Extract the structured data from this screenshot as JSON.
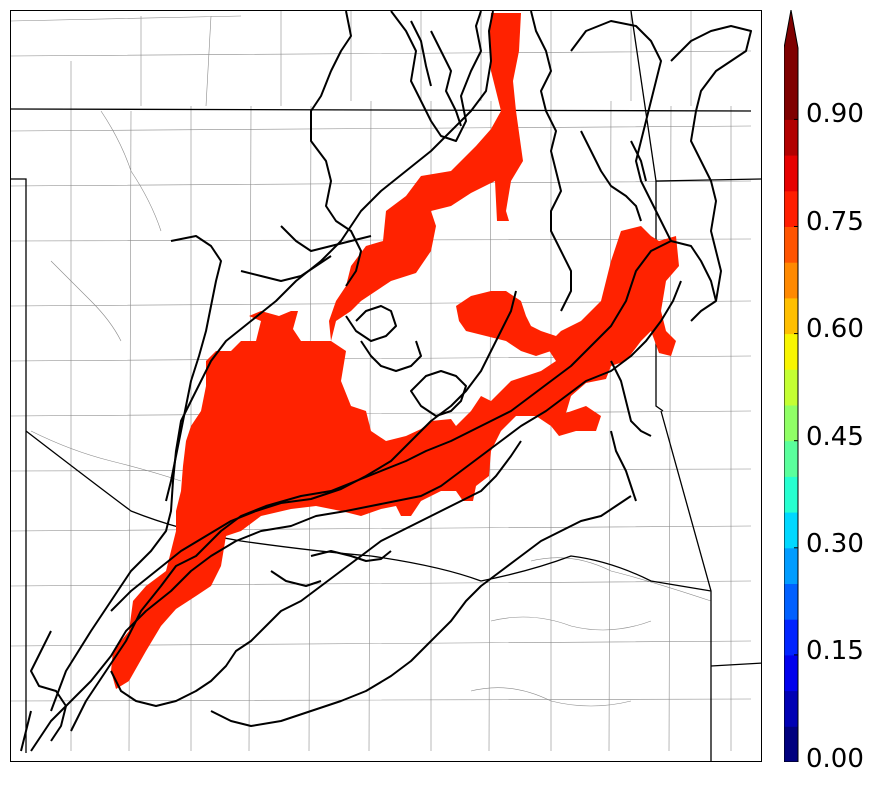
{
  "colorbar": {
    "ticks": [
      {
        "value": "0.00"
      },
      {
        "value": "0.15"
      },
      {
        "value": "0.30"
      },
      {
        "value": "0.45"
      },
      {
        "value": "0.60"
      },
      {
        "value": "0.75"
      },
      {
        "value": "0.90"
      }
    ],
    "min": 0.0,
    "max": 1.0,
    "extend": "max",
    "levels": 20,
    "colors": [
      "#00007f",
      "#0000b4",
      "#0000ed",
      "#0024ff",
      "#0060ff",
      "#009cff",
      "#00d8ff",
      "#26ffd0",
      "#5aff9c",
      "#90ff66",
      "#c4ff33",
      "#f8f500",
      "#ffbf00",
      "#ff8900",
      "#ff5400",
      "#ff1e00",
      "#e60000",
      "#b20000",
      "#7f0000",
      "#7f0000"
    ],
    "extend_color": "#7f0000"
  },
  "map": {
    "fill_color": "#ff2200",
    "contour_color": "#000000",
    "state_border_color": "#000000",
    "county_border_color": "#8a8a8a"
  }
}
